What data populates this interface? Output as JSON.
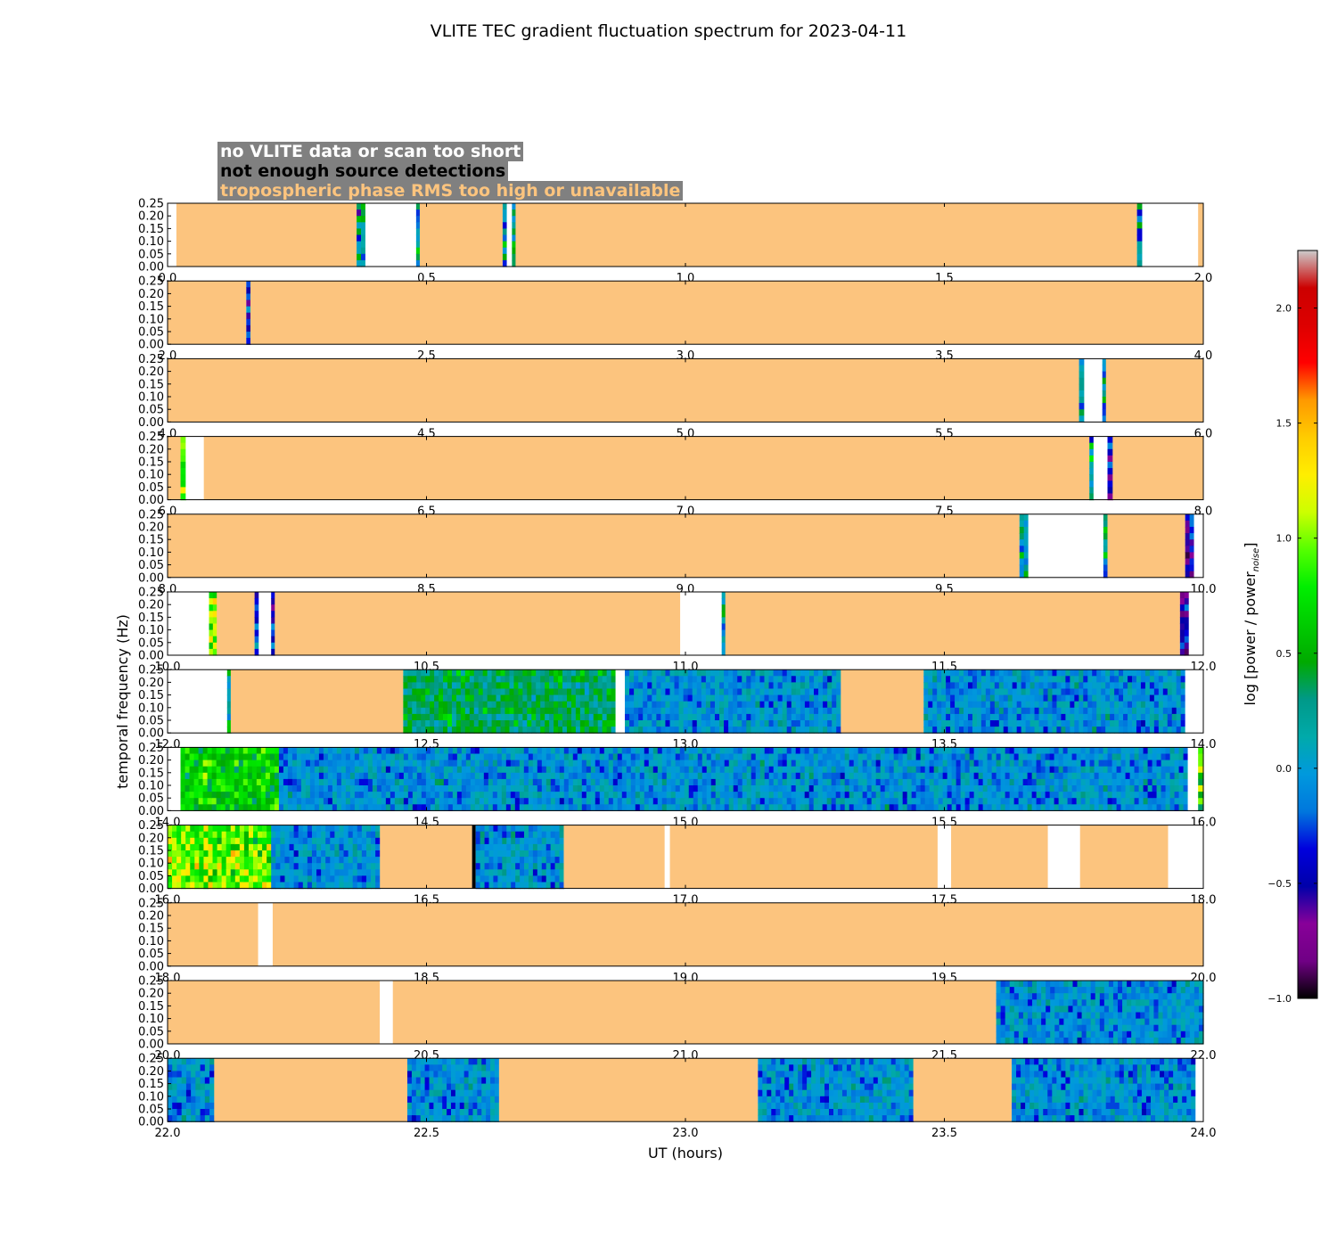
{
  "chart_data": {
    "type": "heatmap",
    "title": "VLITE TEC gradient fluctuation spectrum for 2023-04-11",
    "xlabel": "UT (hours)",
    "ylabel": "temporal frequency (Hz)",
    "ylim": [
      0,
      0.25
    ],
    "yticks": [
      "0.00",
      "0.05",
      "0.10",
      "0.15",
      "0.20",
      "0.25"
    ],
    "colorbar": {
      "label": "log [power / power",
      "label_sub": "noise",
      "label_end": "]",
      "vmin": -1.0,
      "vmax": 2.25,
      "ticks": [
        "−1.0",
        "−0.5",
        "0.0",
        "0.5",
        "1.0",
        "1.5",
        "2.0"
      ],
      "tick_values": [
        -1.0,
        -0.5,
        0.0,
        0.5,
        1.0,
        1.5,
        2.0
      ],
      "colormap": "nipy_spectral"
    },
    "legend": [
      {
        "label": "no VLITE data or scan too short",
        "color": "#ffffff"
      },
      {
        "label": "not enough source detections",
        "color": "#000000"
      },
      {
        "label": "tropospheric phase RMS too high or unavailable",
        "color": "#fcc47e"
      }
    ],
    "segment_colors": {
      "trop": "#fcc47e",
      "nodata": "#ffffff",
      "nodet": "#000000"
    },
    "panels": [
      {
        "xlim": [
          0,
          2
        ],
        "xticks": [
          "0.0",
          "0.5",
          "1.0",
          "1.5",
          "2.0"
        ],
        "segments": [
          [
            "nodata",
            0,
            0.017
          ],
          [
            "trop",
            0.017,
            0.365
          ],
          [
            "spec",
            0.365,
            0.382,
            "strip"
          ],
          [
            "nodata",
            0.382,
            0.48
          ],
          [
            "spec",
            0.48,
            0.487,
            "strip"
          ],
          [
            "trop",
            0.487,
            0.647
          ],
          [
            "spec",
            0.647,
            0.655,
            "strip"
          ],
          [
            "nodata",
            0.655,
            0.665
          ],
          [
            "spec",
            0.665,
            0.672,
            "strip"
          ],
          [
            "trop",
            0.672,
            1.872
          ],
          [
            "spec",
            1.872,
            1.882,
            "strip"
          ],
          [
            "nodata",
            1.882,
            1.99
          ],
          [
            "trop",
            1.99,
            2.0
          ]
        ]
      },
      {
        "xlim": [
          2,
          4
        ],
        "xticks": [
          "2.0",
          "2.5",
          "3.0",
          "3.5",
          "4.0"
        ],
        "segments": [
          [
            "trop",
            2.0,
            2.152
          ],
          [
            "spec",
            2.152,
            2.16,
            "dark"
          ],
          [
            "trop",
            2.16,
            4.0
          ]
        ]
      },
      {
        "xlim": [
          4,
          6
        ],
        "xticks": [
          "4.0",
          "4.5",
          "5.0",
          "5.5",
          "6.0"
        ],
        "segments": [
          [
            "trop",
            4.0,
            5.76
          ],
          [
            "spec",
            5.76,
            5.77,
            "strip"
          ],
          [
            "nodata",
            5.77,
            5.805
          ],
          [
            "spec",
            5.805,
            5.812,
            "strip"
          ],
          [
            "trop",
            5.812,
            6.0
          ]
        ]
      },
      {
        "xlim": [
          6,
          8
        ],
        "xticks": [
          "6.0",
          "6.5",
          "7.0",
          "7.5",
          "8.0"
        ],
        "segments": [
          [
            "trop",
            6.0,
            6.025
          ],
          [
            "spec",
            6.025,
            6.035,
            "hot"
          ],
          [
            "nodata",
            6.035,
            6.07
          ],
          [
            "trop",
            6.07,
            7.78
          ],
          [
            "spec",
            7.78,
            7.788,
            "strip"
          ],
          [
            "nodata",
            7.788,
            7.815
          ],
          [
            "spec",
            7.815,
            7.825,
            "dark"
          ],
          [
            "trop",
            7.825,
            8.0
          ]
        ]
      },
      {
        "xlim": [
          8,
          10
        ],
        "xticks": [
          "8.0",
          "8.5",
          "9.0",
          "9.5",
          "10.0"
        ],
        "segments": [
          [
            "trop",
            8.0,
            9.645
          ],
          [
            "spec",
            9.645,
            9.662,
            "strip"
          ],
          [
            "nodata",
            9.662,
            9.807
          ],
          [
            "spec",
            9.807,
            9.815,
            "strip"
          ],
          [
            "trop",
            9.815,
            9.965
          ],
          [
            "spec",
            9.965,
            9.982,
            "dark"
          ],
          [
            "nodata",
            9.982,
            10.0
          ]
        ]
      },
      {
        "xlim": [
          10,
          12
        ],
        "xticks": [
          "10.0",
          "10.5",
          "11.0",
          "11.5",
          "12.0"
        ],
        "segments": [
          [
            "nodata",
            10.0,
            10.08
          ],
          [
            "spec",
            10.08,
            10.095,
            "hot"
          ],
          [
            "trop",
            10.095,
            10.168
          ],
          [
            "spec",
            10.168,
            10.176,
            "dark"
          ],
          [
            "nodata",
            10.176,
            10.2
          ],
          [
            "spec",
            10.2,
            10.207,
            "dark"
          ],
          [
            "trop",
            10.207,
            10.99
          ],
          [
            "nodata",
            10.99,
            11.07
          ],
          [
            "spec",
            11.07,
            11.077,
            "strip"
          ],
          [
            "trop",
            11.077,
            11.955
          ],
          [
            "spec",
            11.955,
            11.972,
            "dark"
          ],
          [
            "nodata",
            11.972,
            12.0
          ]
        ]
      },
      {
        "xlim": [
          12,
          14
        ],
        "xticks": [
          "12.0",
          "12.5",
          "13.0",
          "13.5",
          "14.0"
        ],
        "segments": [
          [
            "nodata",
            12.0,
            12.115
          ],
          [
            "spec",
            12.115,
            12.122,
            "strip"
          ],
          [
            "trop",
            12.122,
            12.455
          ],
          [
            "spec",
            12.455,
            12.865,
            "green"
          ],
          [
            "nodata",
            12.865,
            12.883
          ],
          [
            "spec",
            12.883,
            13.3,
            "cool"
          ],
          [
            "trop",
            13.3,
            13.46
          ],
          [
            "spec",
            13.46,
            13.965,
            "cool"
          ],
          [
            "nodata",
            13.965,
            14.0
          ]
        ]
      },
      {
        "xlim": [
          14,
          16
        ],
        "xticks": [
          "14.0",
          "14.5",
          "15.0",
          "15.5",
          "16.0"
        ],
        "segments": [
          [
            "nodata",
            14.0,
            14.025
          ],
          [
            "spec",
            14.025,
            14.215,
            "warm"
          ],
          [
            "spec",
            14.215,
            15.97,
            "cool"
          ],
          [
            "nodata",
            15.97,
            15.99
          ],
          [
            "spec",
            15.99,
            16.0,
            "hot"
          ]
        ]
      },
      {
        "xlim": [
          16,
          18
        ],
        "xticks": [
          "16.0",
          "16.5",
          "17.0",
          "17.5",
          "18.0"
        ],
        "segments": [
          [
            "spec",
            16.0,
            16.2,
            "hot"
          ],
          [
            "spec",
            16.2,
            16.41,
            "cool"
          ],
          [
            "trop",
            16.41,
            16.588
          ],
          [
            "nodet",
            16.588,
            16.595
          ],
          [
            "spec",
            16.595,
            16.765,
            "cool"
          ],
          [
            "trop",
            16.765,
            16.96
          ],
          [
            "nodata",
            16.96,
            16.97
          ],
          [
            "trop",
            16.97,
            17.487
          ],
          [
            "nodata",
            17.487,
            17.513
          ],
          [
            "trop",
            17.513,
            17.7
          ],
          [
            "nodata",
            17.7,
            17.762
          ],
          [
            "trop",
            17.762,
            17.932
          ],
          [
            "nodata",
            17.932,
            18.0
          ]
        ]
      },
      {
        "xlim": [
          18,
          20
        ],
        "xticks": [
          "18.0",
          "18.5",
          "19.0",
          "19.5",
          "20.0"
        ],
        "segments": [
          [
            "trop",
            18.0,
            18.175
          ],
          [
            "nodata",
            18.175,
            18.203
          ],
          [
            "trop",
            18.203,
            20.0
          ]
        ]
      },
      {
        "xlim": [
          20,
          22
        ],
        "xticks": [
          "20.0",
          "20.5",
          "21.0",
          "21.5",
          "22.0"
        ],
        "segments": [
          [
            "trop",
            20.0,
            20.41
          ],
          [
            "nodata",
            20.41,
            20.435
          ],
          [
            "trop",
            20.435,
            21.6
          ],
          [
            "spec",
            21.6,
            22.0,
            "cool"
          ]
        ]
      },
      {
        "xlim": [
          22,
          24
        ],
        "xticks": [
          "22.0",
          "22.5",
          "23.0",
          "23.5",
          "24.0"
        ],
        "segments": [
          [
            "spec",
            22.0,
            22.09,
            "cool"
          ],
          [
            "trop",
            22.09,
            22.463
          ],
          [
            "spec",
            22.463,
            22.64,
            "cool"
          ],
          [
            "trop",
            22.64,
            23.14
          ],
          [
            "spec",
            23.14,
            23.44,
            "cool"
          ],
          [
            "trop",
            23.44,
            23.63
          ],
          [
            "spec",
            23.63,
            23.985,
            "cool"
          ],
          [
            "nodata",
            23.985,
            24.0
          ]
        ]
      }
    ]
  }
}
